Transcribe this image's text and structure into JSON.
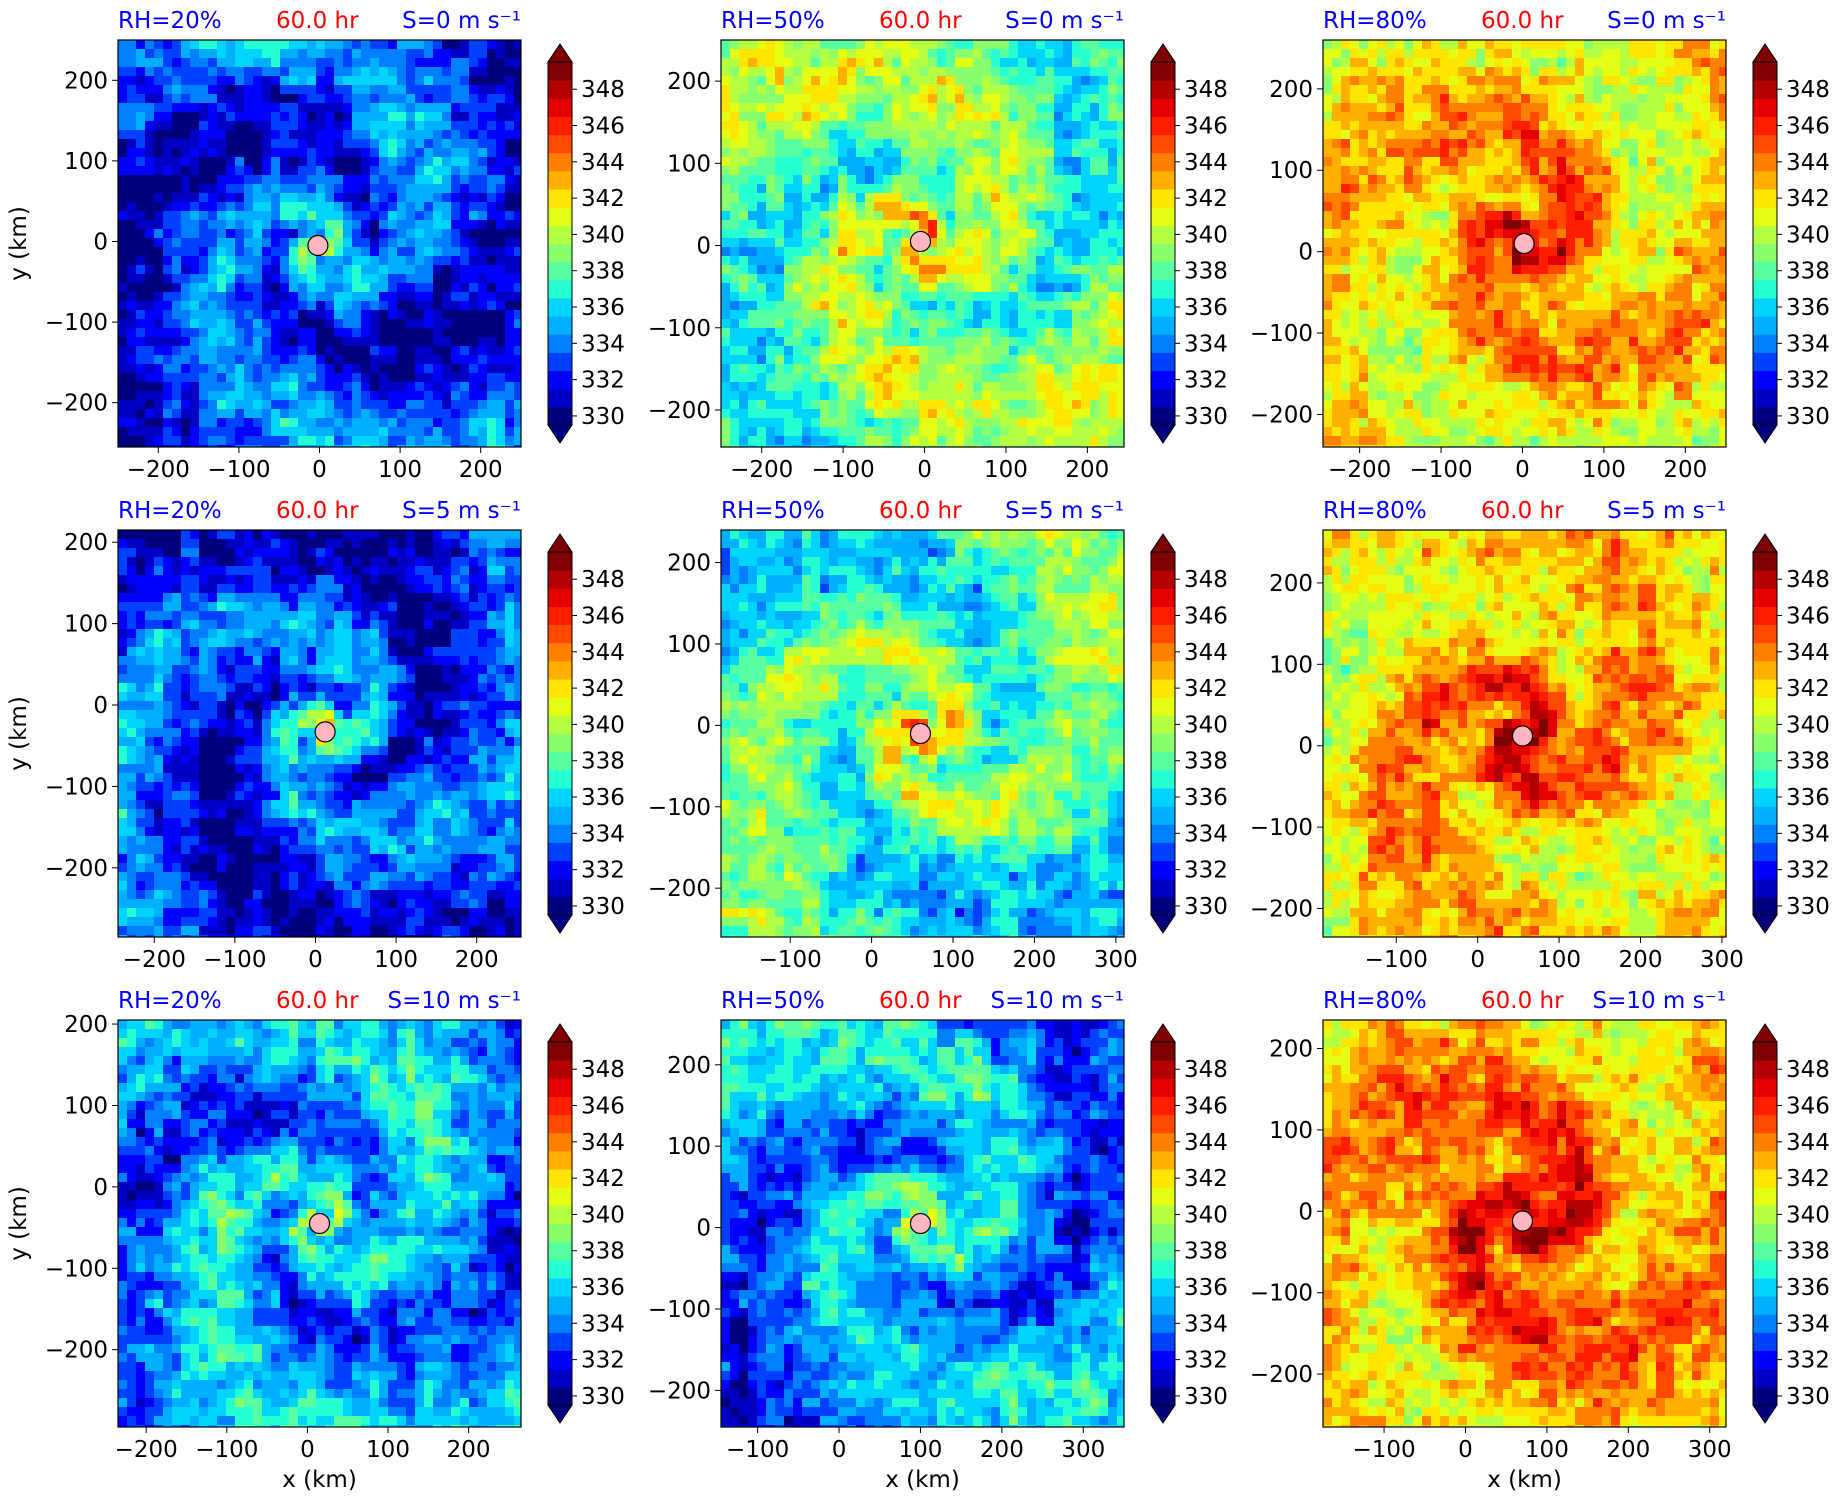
{
  "figure": {
    "time_label": "60.0 hr",
    "xlabel": "x (km)",
    "ylabel": "y (km)",
    "colors": {
      "title_blue": "#0000ff",
      "title_red": "#ff0000",
      "center_marker": "#ffb6c1"
    }
  },
  "chart_data": [
    {
      "type": "heatmap",
      "rh_label": "RH=20%",
      "shear_label": "S=0 m s⁻¹",
      "xlim": [
        -250,
        250
      ],
      "ylim": [
        -255,
        250
      ],
      "xticks": [
        "−200",
        "−100",
        "0",
        "100",
        "200"
      ],
      "xtick_values": [
        -200,
        -100,
        0,
        100,
        200
      ],
      "yticks": [
        "200",
        "100",
        "0",
        "−100",
        "−200"
      ],
      "ytick_values": [
        200,
        100,
        0,
        -100,
        -200
      ],
      "center": [
        -2,
        -5
      ],
      "core_level": 340,
      "env_level": 333,
      "field_mode": 1,
      "seed": 11
    },
    {
      "type": "heatmap",
      "rh_label": "RH=50%",
      "shear_label": "S=0 m s⁻¹",
      "xlim": [
        -250,
        245
      ],
      "ylim": [
        -245,
        250
      ],
      "xticks": [
        "−200",
        "−100",
        "0",
        "100",
        "200"
      ],
      "xtick_values": [
        -200,
        -100,
        0,
        100,
        200
      ],
      "yticks": [
        "200",
        "100",
        "0",
        "−100",
        "−200"
      ],
      "ytick_values": [
        200,
        100,
        0,
        -100,
        -200
      ],
      "center": [
        -5,
        5
      ],
      "core_level": 345,
      "env_level": 339,
      "field_mode": 1,
      "seed": 23
    },
    {
      "type": "heatmap",
      "rh_label": "RH=80%",
      "shear_label": "S=0 m s⁻¹",
      "xlim": [
        -245,
        250
      ],
      "ylim": [
        -240,
        260
      ],
      "xticks": [
        "−200",
        "−100",
        "0",
        "100",
        "200"
      ],
      "xtick_values": [
        -200,
        -100,
        0,
        100,
        200
      ],
      "yticks": [
        "200",
        "100",
        "0",
        "−100",
        "−200"
      ],
      "ytick_values": [
        200,
        100,
        0,
        -100,
        -200
      ],
      "center": [
        2,
        10
      ],
      "core_level": 348,
      "env_level": 342,
      "field_mode": 2,
      "seed": 37
    },
    {
      "type": "heatmap",
      "rh_label": "RH=20%",
      "shear_label": "S=5 m s⁻¹",
      "xlim": [
        -245,
        255
      ],
      "ylim": [
        -285,
        215
      ],
      "xticks": [
        "−200",
        "−100",
        "0",
        "100",
        "200"
      ],
      "xtick_values": [
        -200,
        -100,
        0,
        100,
        200
      ],
      "yticks": [
        "200",
        "100",
        "0",
        "−100",
        "−200"
      ],
      "ytick_values": [
        200,
        100,
        0,
        -100,
        -200
      ],
      "center": [
        12,
        -33
      ],
      "core_level": 342,
      "env_level": 333,
      "field_mode": 1,
      "seed": 41
    },
    {
      "type": "heatmap",
      "rh_label": "RH=50%",
      "shear_label": "S=5 m s⁻¹",
      "xlim": [
        -185,
        310
      ],
      "ylim": [
        -260,
        240
      ],
      "xticks": [
        "−100",
        "0",
        "100",
        "200",
        "300"
      ],
      "xtick_values": [
        -100,
        0,
        100,
        200,
        300
      ],
      "yticks": [
        "200",
        "100",
        "0",
        "−100",
        "−200"
      ],
      "ytick_values": [
        200,
        100,
        0,
        -100,
        -200
      ],
      "center": [
        60,
        -10
      ],
      "core_level": 346,
      "env_level": 338,
      "field_mode": 1,
      "seed": 53
    },
    {
      "type": "heatmap",
      "rh_label": "RH=80%",
      "shear_label": "S=5 m s⁻¹",
      "xlim": [
        -190,
        305
      ],
      "ylim": [
        -235,
        265
      ],
      "xticks": [
        "−100",
        "0",
        "100",
        "200",
        "300"
      ],
      "xtick_values": [
        -100,
        0,
        100,
        200,
        300
      ],
      "yticks": [
        "200",
        "100",
        "0",
        "−100",
        "−200"
      ],
      "ytick_values": [
        200,
        100,
        0,
        -100,
        -200
      ],
      "center": [
        55,
        12
      ],
      "core_level": 349,
      "env_level": 342,
      "field_mode": 2,
      "seed": 67
    },
    {
      "type": "heatmap",
      "rh_label": "RH=20%",
      "shear_label": "S=10 m s⁻¹",
      "xlim": [
        -235,
        265
      ],
      "ylim": [
        -295,
        205
      ],
      "xticks": [
        "−200",
        "−100",
        "0",
        "100",
        "200"
      ],
      "xtick_values": [
        -200,
        -100,
        0,
        100,
        200
      ],
      "yticks": [
        "200",
        "100",
        "0",
        "−100",
        "−200"
      ],
      "ytick_values": [
        200,
        100,
        0,
        -100,
        -200
      ],
      "center": [
        15,
        -45
      ],
      "core_level": 339,
      "env_level": 335,
      "field_mode": 1,
      "seed": 71
    },
    {
      "type": "heatmap",
      "rh_label": "RH=50%",
      "shear_label": "S=10 m s⁻¹",
      "xlim": [
        -145,
        350
      ],
      "ylim": [
        -245,
        255
      ],
      "xticks": [
        "−100",
        "0",
        "100",
        "200",
        "300"
      ],
      "xtick_values": [
        -100,
        0,
        100,
        200,
        300
      ],
      "yticks": [
        "200",
        "100",
        "0",
        "−100",
        "−200"
      ],
      "ytick_values": [
        200,
        100,
        0,
        -100,
        -200
      ],
      "center": [
        100,
        5
      ],
      "core_level": 343,
      "env_level": 335,
      "field_mode": 1,
      "seed": 83
    },
    {
      "type": "heatmap",
      "rh_label": "RH=80%",
      "shear_label": "S=10 m s⁻¹",
      "xlim": [
        -175,
        320
      ],
      "ylim": [
        -265,
        235
      ],
      "xticks": [
        "−100",
        "0",
        "100",
        "200",
        "300"
      ],
      "xtick_values": [
        -100,
        0,
        100,
        200,
        300
      ],
      "yticks": [
        "200",
        "100",
        "0",
        "−100",
        "−200"
      ],
      "ytick_values": [
        200,
        100,
        0,
        -100,
        -200
      ],
      "center": [
        70,
        -12
      ],
      "core_level": 349,
      "env_level": 343,
      "field_mode": 2,
      "seed": 97
    }
  ],
  "colorbar": {
    "levels": [
      330,
      331,
      332,
      333,
      334,
      335,
      336,
      337,
      338,
      339,
      340,
      341,
      342,
      343,
      344,
      345,
      346,
      347,
      348,
      349
    ],
    "tick_labels": [
      "348",
      "346",
      "344",
      "342",
      "340",
      "338",
      "336",
      "334",
      "332",
      "330"
    ],
    "tick_values": [
      348,
      346,
      344,
      342,
      340,
      338,
      336,
      334,
      332,
      330
    ],
    "colors": [
      "#00007f",
      "#0000c4",
      "#0000ff",
      "#0040ff",
      "#0080ff",
      "#00b0ff",
      "#00d4ff",
      "#26ffd1",
      "#57ffa0",
      "#8aff6d",
      "#b5ff42",
      "#e4ff13",
      "#ffe600",
      "#ffb000",
      "#ff7f00",
      "#ff4800",
      "#ff1e00",
      "#e50000",
      "#b20000",
      "#7f0000"
    ],
    "under_color": "#00007f",
    "over_color": "#7f0000"
  }
}
